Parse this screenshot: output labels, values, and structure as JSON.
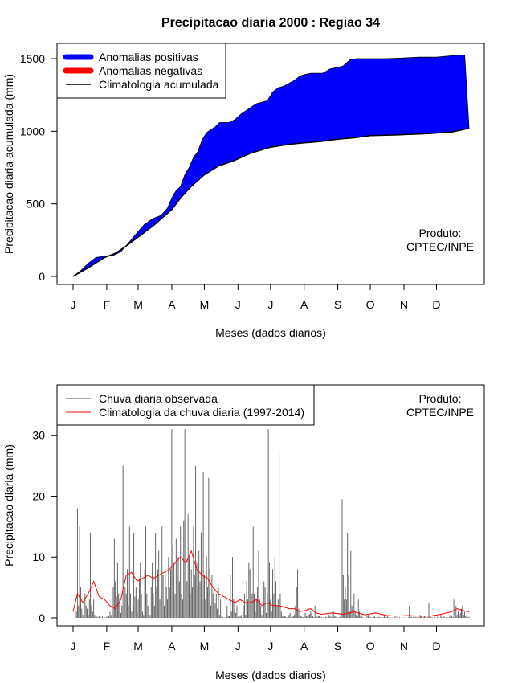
{
  "title": "Precipitacao diaria 2000 : Regiao 34",
  "chart_data": [
    {
      "type": "area",
      "ylabel": "Precipitacao diaria acumulada (mm)",
      "xlabel": "Meses (dados diarios)",
      "x_ticks": [
        "J",
        "F",
        "M",
        "A",
        "M",
        "J",
        "J",
        "A",
        "S",
        "O",
        "N",
        "D"
      ],
      "x_tick_days": [
        1,
        32,
        61,
        92,
        122,
        153,
        183,
        214,
        245,
        275,
        306,
        336
      ],
      "xlim": [
        1,
        366
      ],
      "ylim": [
        0,
        1550
      ],
      "y_ticks": [
        0,
        500,
        1000,
        1500
      ],
      "legend": [
        "Anomalias positivas",
        "Anomalias negativas",
        "Climatologia acumulada"
      ],
      "legend_colors": [
        "#0000ff",
        "#ff0000",
        "#000000"
      ],
      "legend_position": "top-left",
      "annotation": [
        "Produto:",
        "CPTEC/INPE"
      ],
      "observed_cumulative": {
        "day": [
          1,
          8,
          15,
          22,
          30,
          38,
          45,
          52,
          60,
          67,
          75,
          82,
          88,
          92,
          96,
          100,
          104,
          108,
          112,
          116,
          120,
          124,
          128,
          132,
          136,
          140,
          145,
          150,
          156,
          160,
          166,
          170,
          175,
          180,
          185,
          190,
          195,
          200,
          205,
          210,
          214,
          220,
          225,
          231,
          238,
          245,
          250,
          256,
          262,
          268,
          275,
          290,
          306,
          320,
          336,
          350,
          362
        ],
        "value": [
          0,
          40,
          90,
          130,
          140,
          145,
          170,
          230,
          300,
          360,
          400,
          420,
          470,
          540,
          590,
          620,
          700,
          750,
          820,
          860,
          940,
          990,
          1010,
          1030,
          1060,
          1060,
          1060,
          1080,
          1120,
          1140,
          1170,
          1190,
          1200,
          1210,
          1270,
          1300,
          1310,
          1330,
          1350,
          1380,
          1390,
          1400,
          1400,
          1400,
          1430,
          1440,
          1450,
          1490,
          1500,
          1500,
          1500,
          1500,
          1505,
          1510,
          1510,
          1520,
          1525
        ]
      },
      "climatology_cumulative": {
        "day": [
          1,
          15,
          30,
          40,
          50,
          61,
          75,
          92,
          100,
          110,
          122,
          135,
          150,
          165,
          183,
          200,
          214,
          230,
          245,
          260,
          275,
          300,
          330,
          350,
          366
        ],
        "value": [
          0,
          60,
          130,
          160,
          210,
          270,
          350,
          460,
          540,
          620,
          700,
          760,
          800,
          850,
          890,
          910,
          920,
          930,
          945,
          955,
          970,
          975,
          985,
          995,
          1020
        ]
      }
    },
    {
      "type": "bar",
      "ylabel": "Precipitacao diaria (mm)",
      "xlabel": "Meses (dados diarios)",
      "x_ticks": [
        "J",
        "F",
        "M",
        "A",
        "M",
        "J",
        "J",
        "A",
        "S",
        "O",
        "N",
        "D"
      ],
      "x_tick_days": [
        1,
        32,
        61,
        92,
        122,
        153,
        183,
        214,
        245,
        275,
        306,
        336
      ],
      "xlim": [
        1,
        366
      ],
      "ylim": [
        0,
        33
      ],
      "y_ticks": [
        0,
        10,
        20,
        30
      ],
      "legend": [
        "Chuva diaria observada",
        "Climatologia da chuva diaria (1997-2014)"
      ],
      "legend_colors": [
        "#555555",
        "#ff0000"
      ],
      "legend_position": "top-left",
      "annotation": [
        "Produto:",
        "CPTEC/INPE"
      ],
      "observed_daily": [
        0,
        0,
        0,
        1.0,
        18.0,
        2.0,
        15.0,
        5.0,
        1.5,
        0.5,
        9.0,
        4.0,
        2.0,
        1.5,
        0.5,
        3.0,
        14.0,
        2.0,
        1.0,
        3.0,
        0.5,
        0.3,
        0.2,
        0.1,
        0.3,
        0.5,
        0.0,
        0.3,
        0.0,
        0.1,
        0.0,
        0.2,
        0.1,
        0.4,
        1.0,
        0.5,
        0.1,
        5.0,
        13.0,
        6.0,
        3.5,
        9.0,
        4.0,
        3.0,
        0.8,
        2.0,
        25.0,
        9.0,
        5.0,
        4.0,
        8.0,
        2.0,
        15.0,
        4.0,
        1.0,
        2.0,
        14.0,
        3.5,
        5.0,
        1.0,
        3.0,
        6.5,
        9.0,
        4.0,
        1.0,
        0.5,
        8.0,
        15.0,
        4.0,
        2.0,
        0.3,
        0.5,
        5.0,
        9.0,
        4.0,
        2.0,
        14.0,
        5.0,
        8.0,
        11.0,
        3.0,
        4.0,
        15.0,
        7.0,
        2.0,
        8.0,
        5.0,
        3.0,
        10.0,
        5.0,
        8.0,
        31.0,
        12.0,
        9.0,
        4.0,
        13.0,
        7.0,
        10.0,
        6.0,
        15.0,
        4.0,
        3.0,
        16.0,
        31.0,
        8.0,
        6.0,
        17.0,
        10.0,
        4.0,
        8.0,
        5.0,
        15.0,
        7.0,
        25.0,
        9.0,
        5.0,
        11.0,
        6.0,
        14.0,
        3.0,
        24.0,
        7.0,
        3.0,
        10.0,
        5.0,
        23.0,
        8.0,
        2.0,
        7.0,
        4.0,
        13.0,
        2.5,
        4.0,
        1.5,
        5.0,
        0.5,
        3.0,
        0.2,
        0.1,
        0.0,
        0.1,
        0.5,
        2.0,
        0.3,
        0.4,
        7.0,
        1.0,
        10.0,
        3.0,
        1.5,
        0.8,
        2.0,
        0.2,
        0.1,
        0.3,
        0.5,
        0.0,
        2.0,
        4.0,
        0.5,
        6.0,
        3.0,
        9.0,
        8.0,
        7.0,
        4.0,
        15.0,
        4.0,
        1.0,
        3.0,
        5.0,
        11.0,
        3.0,
        2.0,
        0.5,
        7.0,
        6.0,
        5.0,
        0.8,
        4.0,
        31.0,
        9.0,
        3.0,
        1.0,
        8.0,
        4.0,
        10.0,
        6.0,
        2.0,
        3.0,
        27.0,
        4.0,
        1.0,
        0.2,
        0.3,
        0.4,
        0.2,
        0.1,
        0.3,
        0.5,
        0.8,
        0.1,
        0.2,
        0.4,
        0.6,
        2.0,
        5.0,
        8.0,
        1.5,
        0.5,
        0.3,
        0.2,
        0.1,
        0.3,
        0.8,
        0.4,
        0.2,
        0.5,
        0.6,
        1.0,
        0.8,
        0.3,
        0.1,
        2.0,
        0.5,
        0.2,
        0.3,
        0.4,
        0.2,
        0.1,
        0.0,
        0.1,
        0.0,
        0.2,
        0.1,
        0.3,
        0.5,
        0.4,
        0.1,
        0.3,
        1.0,
        0.2,
        0.3,
        0.1,
        0.0,
        0.1,
        0.2,
        3.0,
        19.5,
        7.0,
        3.0,
        5.0,
        3.0,
        14.0,
        7.0,
        1.0,
        11.0,
        2.0,
        6.0,
        4.0,
        1.0,
        0.5,
        0.3,
        3.0,
        1.0,
        0.2,
        0.5,
        0.1,
        0.0,
        0.1,
        0.0,
        0.3,
        0.5,
        0.1,
        0.2,
        0.0,
        0.1,
        0.3,
        0.2,
        0.1,
        0.0,
        0.1,
        0.2,
        0.1,
        0.3,
        0.0,
        0.1,
        0.5,
        0.2,
        0.1,
        0.4,
        0.1,
        0.2,
        0.0,
        0.1,
        0.0,
        0.3,
        0.2,
        0.0,
        0.1,
        0.0,
        0.1,
        0.0,
        0.2,
        0.0,
        0.1,
        0.0,
        0.2,
        0.0,
        0.1,
        2.0,
        0.2,
        0.1,
        0.0,
        0.3,
        0.1,
        0.2,
        0.1,
        0.0,
        0.1,
        0.5,
        0.2,
        0.0,
        0.1,
        0.3,
        0.1,
        0.0,
        0.1,
        2.5,
        0.4,
        0.2,
        0.1,
        0.0,
        0.3,
        0.1,
        0.0,
        0.2,
        0.1,
        0.0,
        0.5,
        0.1,
        0.2,
        0.3,
        0.0,
        0.1,
        0.1,
        0.0,
        0.2,
        0.5,
        0.3,
        0.1,
        3.0,
        7.8,
        2.0,
        0.5,
        1.0,
        0.3,
        0.8,
        1.5,
        2.0,
        0.5,
        1.0,
        0.3,
        0.5,
        0.1,
        0.2
      ],
      "climatology_daily": {
        "day": [
          1,
          5,
          10,
          15,
          20,
          25,
          30,
          35,
          40,
          45,
          50,
          55,
          60,
          65,
          70,
          75,
          80,
          85,
          90,
          95,
          100,
          105,
          110,
          115,
          120,
          125,
          130,
          135,
          140,
          145,
          150,
          155,
          160,
          165,
          170,
          175,
          180,
          185,
          190,
          195,
          200,
          205,
          210,
          215,
          220,
          225,
          230,
          240,
          250,
          260,
          270,
          280,
          290,
          300,
          310,
          320,
          330,
          340,
          350,
          355,
          360,
          366
        ],
        "value": [
          1,
          4,
          2.5,
          4,
          6,
          3.5,
          3,
          2,
          1.5,
          3,
          7,
          7.5,
          6,
          6.5,
          7,
          6.5,
          7,
          7.5,
          8,
          9,
          10,
          9,
          11,
          8,
          7,
          6.5,
          5,
          4,
          3.5,
          3,
          2.5,
          3,
          2.5,
          2.5,
          3,
          2,
          2.5,
          2,
          2,
          1.8,
          1.5,
          1.5,
          1,
          1.2,
          1.5,
          0.8,
          0.6,
          0.8,
          0.6,
          1.0,
          0.5,
          0.8,
          0.4,
          0.3,
          0.4,
          0.3,
          0.3,
          0.6,
          1.0,
          1.5,
          1.2,
          1.0
        ]
      }
    }
  ]
}
